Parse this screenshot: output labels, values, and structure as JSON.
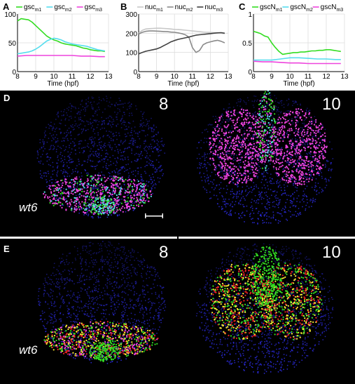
{
  "chart_data": [
    {
      "panel": "A",
      "type": "line",
      "xlabel": "Time (hpf)",
      "xlim": [
        8,
        13
      ],
      "ylim": [
        0,
        100
      ],
      "xticks": [
        "8",
        "9",
        "10",
        "11",
        "12",
        "13"
      ],
      "yticks": [
        "0",
        "50",
        "100"
      ],
      "grid": true,
      "legend_position": "top",
      "series": [
        {
          "base": "gsc",
          "sub": "m1",
          "color": "#33dd22",
          "x": [
            8,
            8.2,
            8.4,
            8.6,
            8.8,
            9,
            9.2,
            9.4,
            9.6,
            9.8,
            10,
            10.2,
            10.4,
            10.6,
            10.8,
            11,
            11.2,
            11.4,
            11.6,
            11.8,
            12,
            12.2,
            12.4,
            12.6,
            12.8
          ],
          "y": [
            88,
            92,
            91,
            90,
            86,
            80,
            74,
            68,
            62,
            58,
            55,
            53,
            50,
            48,
            47,
            46,
            45,
            43,
            41,
            40,
            38,
            37,
            36,
            36,
            35
          ]
        },
        {
          "base": "gsc",
          "sub": "m2",
          "color": "#55ddee",
          "x": [
            8,
            8.2,
            8.4,
            8.6,
            8.8,
            9,
            9.2,
            9.4,
            9.6,
            9.8,
            10,
            10.2,
            10.4,
            10.6,
            10.8,
            11,
            11.2,
            11.4,
            11.6,
            11.8,
            12,
            12.2,
            12.4,
            12.6,
            12.8
          ],
          "y": [
            31,
            32,
            33,
            34,
            36,
            39,
            43,
            48,
            53,
            56,
            58,
            57,
            55,
            52,
            50,
            48,
            47,
            46,
            45,
            44,
            42,
            40,
            38,
            37,
            36
          ]
        },
        {
          "base": "gsc",
          "sub": "m3",
          "color": "#ee44dd",
          "x": [
            8,
            8.5,
            9,
            9.5,
            10,
            10.5,
            11,
            11.5,
            12,
            12.5,
            12.8
          ],
          "y": [
            27,
            28,
            28,
            28,
            28,
            28,
            28,
            27,
            27,
            26,
            26
          ]
        }
      ]
    },
    {
      "panel": "B",
      "type": "line",
      "xlabel": "Time (hpf)",
      "xlim": [
        8,
        13
      ],
      "ylim": [
        0,
        300
      ],
      "xticks": [
        "8",
        "9",
        "10",
        "11",
        "12",
        "13"
      ],
      "yticks": [
        "0",
        "100",
        "200",
        "300"
      ],
      "grid": true,
      "legend_position": "top",
      "series": [
        {
          "base": "nuc",
          "sub": "m1",
          "color": "#c8c8c8",
          "x": [
            8,
            8.2,
            8.4,
            8.6,
            8.8,
            9,
            9.2,
            9.4,
            9.6,
            9.8,
            10,
            10.2,
            10.4,
            10.6,
            10.8,
            11,
            11.2,
            11.4,
            11.6,
            11.8,
            12,
            12.2,
            12.4,
            12.6,
            12.8
          ],
          "y": [
            200,
            215,
            222,
            224,
            225,
            226,
            226,
            225,
            224,
            222,
            220,
            219,
            218,
            216,
            214,
            212,
            210,
            208,
            206,
            205,
            204,
            203,
            202,
            200,
            198
          ]
        },
        {
          "base": "nuc",
          "sub": "m2",
          "color": "#8a8a8a",
          "x": [
            8,
            8.2,
            8.4,
            8.6,
            8.8,
            9,
            9.2,
            9.4,
            9.6,
            9.8,
            10,
            10.2,
            10.4,
            10.6,
            10.8,
            11,
            11.2,
            11.4,
            11.6,
            11.8,
            12,
            12.2,
            12.4,
            12.6,
            12.8
          ],
          "y": [
            195,
            205,
            210,
            212,
            212,
            211,
            210,
            209,
            208,
            206,
            205,
            202,
            198,
            192,
            180,
            125,
            100,
            110,
            140,
            150,
            155,
            160,
            163,
            158,
            150
          ]
        },
        {
          "base": "nuc",
          "sub": "m3",
          "color": "#404040",
          "x": [
            8,
            8.2,
            8.4,
            8.6,
            8.8,
            9,
            9.2,
            9.4,
            9.6,
            9.8,
            10,
            10.2,
            10.4,
            10.6,
            10.8,
            11,
            11.2,
            11.4,
            11.6,
            11.8,
            12,
            12.2,
            12.4,
            12.6,
            12.8
          ],
          "y": [
            92,
            100,
            106,
            110,
            114,
            118,
            125,
            135,
            145,
            155,
            162,
            168,
            172,
            176,
            180,
            185,
            190,
            192,
            194,
            196,
            198,
            200,
            202,
            203,
            200
          ]
        }
      ]
    },
    {
      "panel": "C",
      "type": "line",
      "xlabel": "Time (hpf)",
      "xlim": [
        8,
        13
      ],
      "ylim": [
        0,
        1
      ],
      "xticks": [
        "8",
        "9",
        "10",
        "11",
        "12",
        "13"
      ],
      "yticks": [
        "0",
        "0.5",
        "1"
      ],
      "grid": true,
      "legend_position": "top",
      "series": [
        {
          "base": "gscN",
          "sub": "m1",
          "color": "#33dd22",
          "x": [
            8,
            8.2,
            8.4,
            8.6,
            8.8,
            9,
            9.2,
            9.4,
            9.6,
            9.8,
            10,
            10.2,
            10.4,
            10.6,
            10.8,
            11,
            11.2,
            11.4,
            11.6,
            11.8,
            12,
            12.2,
            12.4,
            12.6,
            12.8
          ],
          "y": [
            0.7,
            0.68,
            0.66,
            0.62,
            0.6,
            0.5,
            0.42,
            0.35,
            0.3,
            0.31,
            0.32,
            0.33,
            0.33,
            0.34,
            0.34,
            0.35,
            0.36,
            0.36,
            0.37,
            0.37,
            0.38,
            0.38,
            0.37,
            0.36,
            0.35
          ]
        },
        {
          "base": "gscN",
          "sub": "m2",
          "color": "#55ddee",
          "x": [
            8,
            8.5,
            9,
            9.5,
            10,
            10.5,
            11,
            11.5,
            12,
            12.5,
            12.8
          ],
          "y": [
            0.2,
            0.2,
            0.2,
            0.22,
            0.24,
            0.24,
            0.23,
            0.22,
            0.22,
            0.21,
            0.21
          ]
        },
        {
          "base": "gscN",
          "sub": "m3",
          "color": "#ee44dd",
          "x": [
            8,
            8.5,
            9,
            9.5,
            10,
            10.5,
            11,
            11.5,
            12,
            12.5,
            12.8
          ],
          "y": [
            0.18,
            0.17,
            0.17,
            0.16,
            0.15,
            0.15,
            0.14,
            0.14,
            0.14,
            0.14,
            0.14
          ]
        }
      ]
    }
  ],
  "panel_labels": {
    "a": "A",
    "b": "B",
    "c": "C",
    "d": "D",
    "e": "E"
  },
  "images": {
    "d_left_time": "8",
    "d_right_time": "10",
    "e_left_time": "8",
    "e_right_time": "10",
    "d_genotype": "wt6",
    "e_genotype": "wt6",
    "background": "#000000",
    "background_cell_color": "#2a2ad8",
    "d_cluster_colors": [
      "#ee44dd",
      "#33dd22",
      "#55ddee"
    ],
    "e_cluster_colors": [
      "#ffee33",
      "#ee2222",
      "#33dd22",
      "#ee44dd"
    ]
  }
}
